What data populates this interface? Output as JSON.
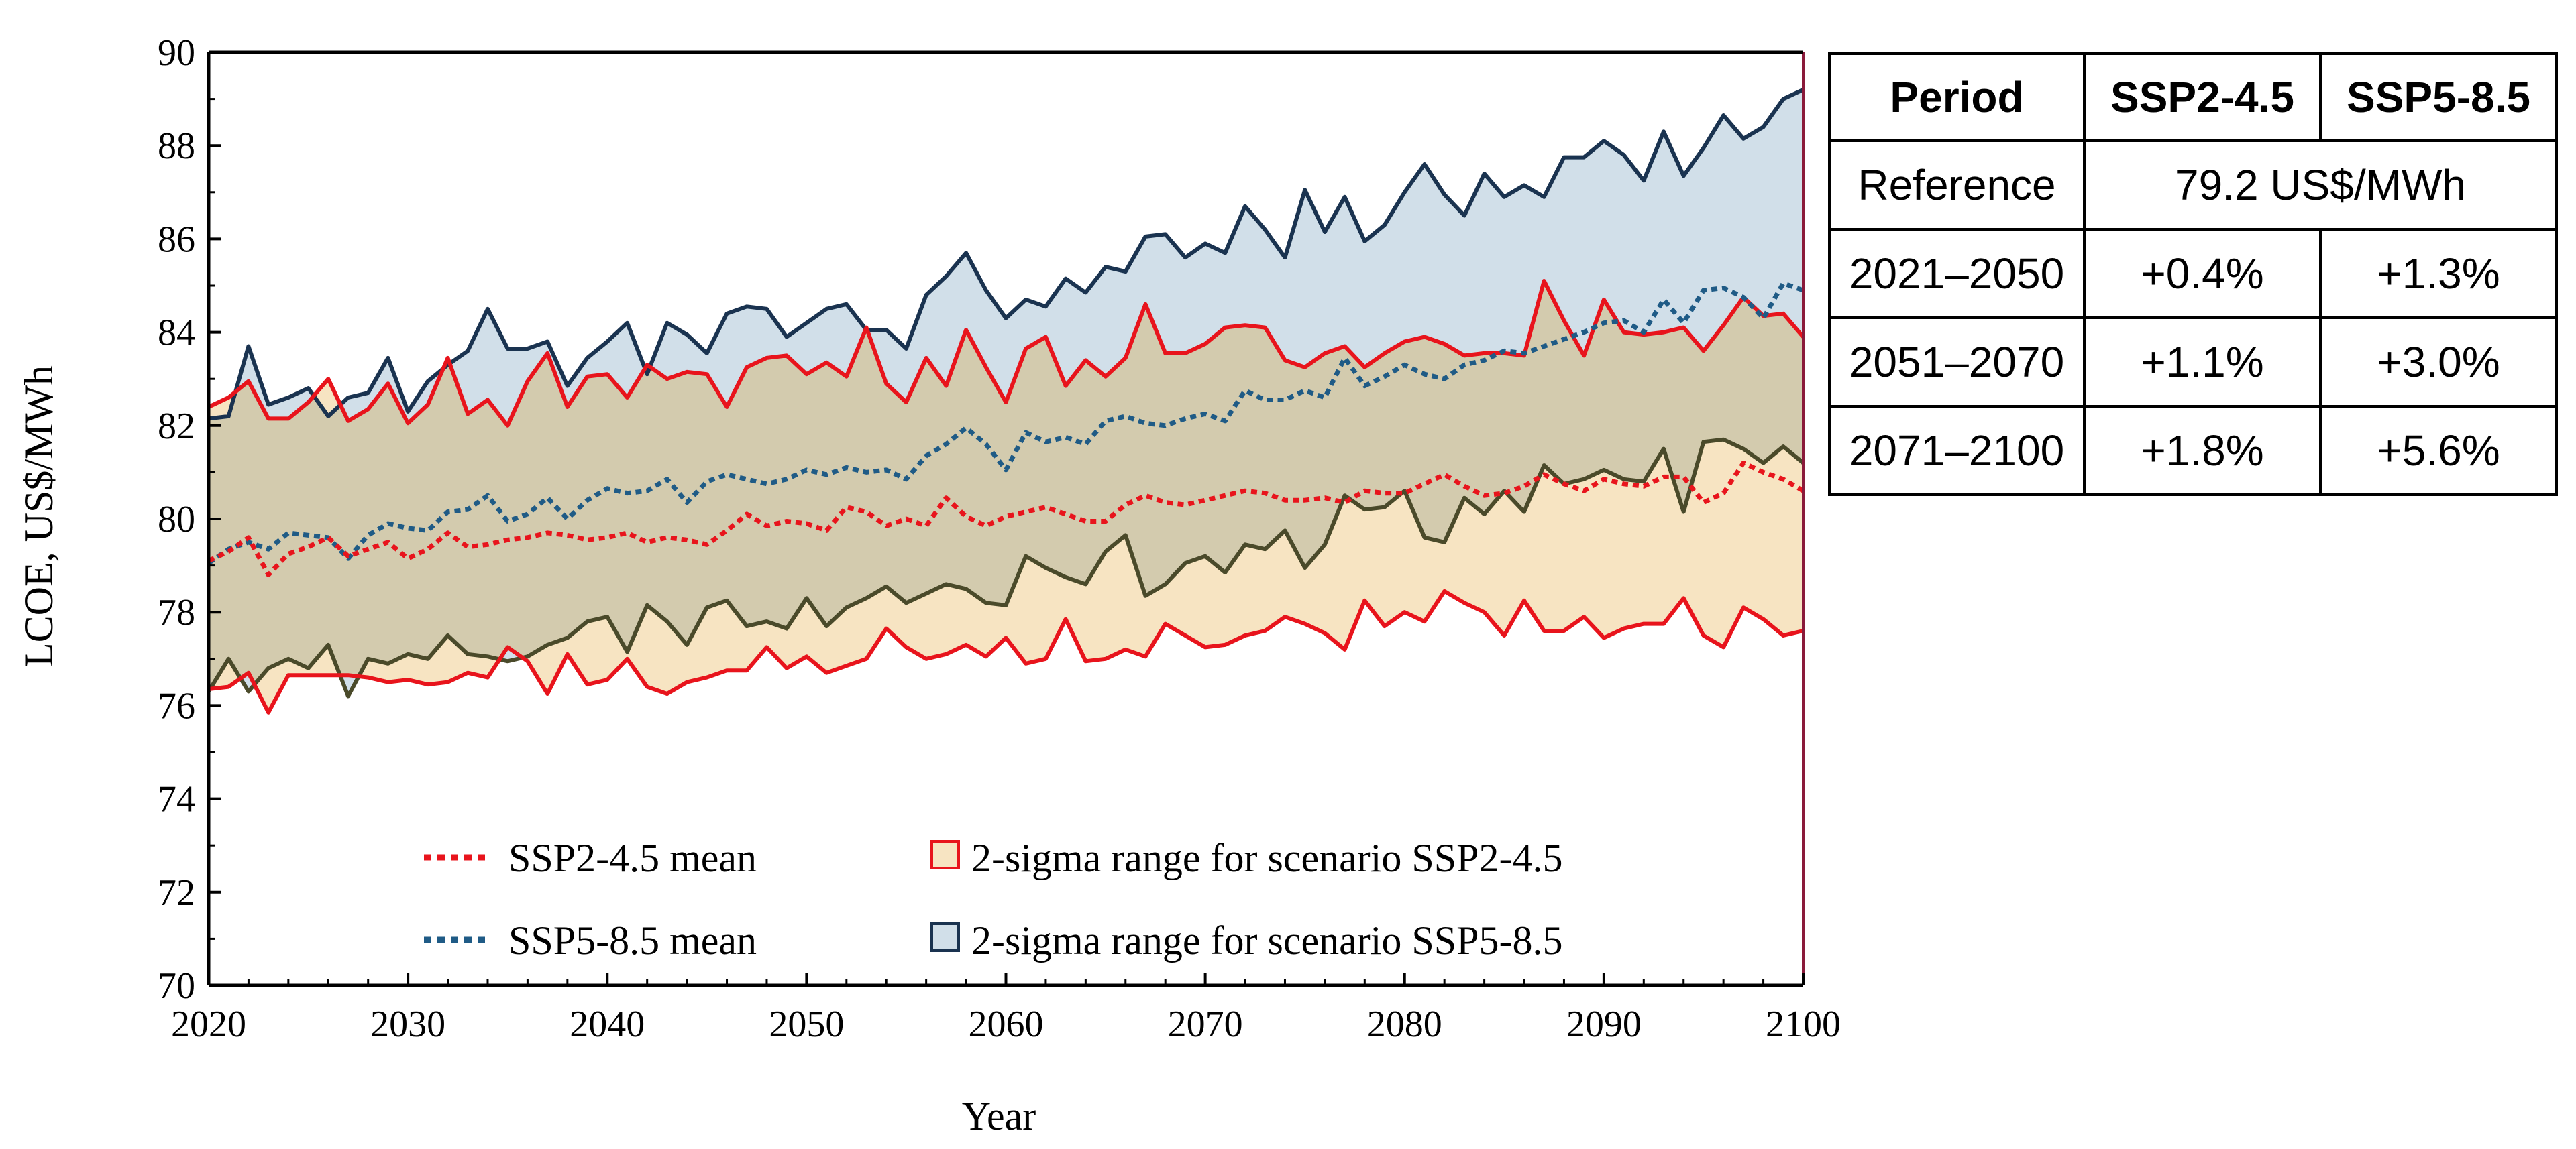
{
  "chart_data": {
    "type": "line",
    "title": "",
    "xlabel": "Year",
    "ylabel": "LCOE, US$/MWh",
    "xlim": [
      2020,
      2100
    ],
    "ylim": [
      70,
      90
    ],
    "xticks": [
      2020,
      2030,
      2040,
      2050,
      2060,
      2070,
      2080,
      2090,
      2100
    ],
    "yticks": [
      70,
      72,
      74,
      76,
      78,
      80,
      82,
      84,
      86,
      88,
      90
    ],
    "legend_position": "bottom-center",
    "legend": {
      "ssp245_mean": "SSP2-4.5 mean",
      "ssp585_mean": "SSP5-8.5 mean",
      "ssp245_band": "2-sigma range for scenario SSP2-4.5",
      "ssp585_band": "2-sigma range for scenario SSP5-8.5"
    },
    "colors": {
      "ssp245_line": "#e8141c",
      "ssp585_line": "#1a3350",
      "ssp245_fill": "#f7e4c2",
      "ssp585_fill": "#d1dfe9",
      "overlap_fill": "#d3cbae",
      "ssp245_mean": "#e8141c",
      "ssp585_mean": "#1f5b86"
    },
    "series": [
      {
        "name": "SSP2-4.5 lower",
        "start_year": 2020,
        "values": [
          76.35,
          76.4,
          76.7,
          75.85,
          76.65,
          76.65,
          76.65,
          76.65,
          76.6,
          76.5,
          76.55,
          76.45,
          76.5,
          76.7,
          76.6,
          77.25,
          76.95,
          76.25,
          77.1,
          76.45,
          76.55,
          77.0,
          76.4,
          76.25,
          76.5,
          76.6,
          76.75,
          76.75,
          77.25,
          76.8,
          77.05,
          76.7,
          76.85,
          77.0,
          77.65,
          77.25,
          77.0,
          77.1,
          77.3,
          77.05,
          77.45,
          76.9,
          77.0,
          77.85,
          76.95,
          77.0,
          77.2,
          77.05,
          77.75,
          77.5,
          77.25,
          77.3,
          77.5,
          77.6,
          77.9,
          77.75,
          77.55,
          77.2,
          78.25,
          77.7,
          78.0,
          77.8,
          78.45,
          78.2,
          78.0,
          77.5,
          78.25,
          77.6,
          77.6,
          77.9,
          77.45,
          77.65,
          77.75,
          77.75,
          78.3,
          77.5,
          77.25,
          78.1,
          77.85,
          77.5,
          77.6
        ]
      },
      {
        "name": "SSP2-4.5 upper",
        "start_year": 2020,
        "values": [
          82.4,
          82.6,
          82.95,
          82.15,
          82.15,
          82.5,
          83.0,
          82.1,
          82.35,
          82.9,
          82.05,
          82.45,
          83.45,
          82.25,
          82.55,
          82.0,
          82.95,
          83.55,
          82.4,
          83.05,
          83.1,
          82.6,
          83.3,
          83.0,
          83.15,
          83.1,
          82.4,
          83.25,
          83.45,
          83.5,
          83.1,
          83.35,
          83.05,
          84.1,
          82.9,
          82.5,
          83.45,
          82.85,
          84.05,
          83.25,
          82.5,
          83.65,
          83.9,
          82.85,
          83.4,
          83.05,
          83.45,
          84.6,
          83.55,
          83.55,
          83.75,
          84.1,
          84.15,
          84.1,
          83.4,
          83.25,
          83.55,
          83.7,
          83.25,
          83.55,
          83.8,
          83.9,
          83.75,
          83.5,
          83.55,
          83.55,
          83.5,
          85.1,
          84.25,
          83.5,
          84.7,
          84.0,
          83.95,
          84.0,
          84.1,
          83.6,
          84.15,
          84.75,
          84.35,
          84.4,
          83.9
        ]
      },
      {
        "name": "SSP5-8.5 lower",
        "start_year": 2020,
        "values": [
          76.3,
          77.0,
          76.3,
          76.8,
          77.0,
          76.8,
          77.3,
          76.2,
          77.0,
          76.9,
          77.1,
          77.0,
          77.5,
          77.1,
          77.05,
          76.95,
          77.05,
          77.3,
          77.45,
          77.8,
          77.9,
          77.15,
          78.15,
          77.8,
          77.3,
          78.1,
          78.25,
          77.7,
          77.8,
          77.65,
          78.3,
          77.7,
          78.1,
          78.3,
          78.55,
          78.2,
          78.4,
          78.6,
          78.5,
          78.2,
          78.15,
          79.2,
          78.95,
          78.75,
          78.6,
          79.3,
          79.65,
          78.35,
          78.6,
          79.05,
          79.2,
          78.85,
          79.45,
          79.35,
          79.75,
          78.95,
          79.45,
          80.5,
          80.2,
          80.25,
          80.6,
          79.6,
          79.5,
          80.45,
          80.1,
          80.6,
          80.15,
          81.15,
          80.75,
          80.85,
          81.05,
          80.85,
          80.8,
          81.5,
          80.15,
          81.65,
          81.7,
          81.5,
          81.2,
          81.55,
          81.2
        ]
      },
      {
        "name": "SSP5-8.5 upper",
        "start_year": 2020,
        "values": [
          82.15,
          82.2,
          83.7,
          82.45,
          82.6,
          82.8,
          82.2,
          82.6,
          82.7,
          83.45,
          82.3,
          82.95,
          83.3,
          83.6,
          84.5,
          83.65,
          83.65,
          83.8,
          82.85,
          83.45,
          83.8,
          84.2,
          83.1,
          84.2,
          83.95,
          83.55,
          84.4,
          84.55,
          84.5,
          83.9,
          84.2,
          84.5,
          84.6,
          84.05,
          84.05,
          83.65,
          84.8,
          85.2,
          85.7,
          84.9,
          84.3,
          84.7,
          84.55,
          85.15,
          84.85,
          85.4,
          85.3,
          86.05,
          86.1,
          85.6,
          85.9,
          85.7,
          86.7,
          86.2,
          85.6,
          87.05,
          86.15,
          86.9,
          85.95,
          86.3,
          87.0,
          87.6,
          86.95,
          86.5,
          87.4,
          86.9,
          87.15,
          86.9,
          87.75,
          87.75,
          88.1,
          87.8,
          87.25,
          88.3,
          87.35,
          87.95,
          88.65,
          88.15,
          88.4,
          89.0,
          89.2
        ]
      },
      {
        "name": "SSP2-4.5 mean",
        "start_year": 2020,
        "values": [
          79.1,
          79.3,
          79.6,
          78.8,
          79.25,
          79.4,
          79.6,
          79.2,
          79.35,
          79.5,
          79.15,
          79.35,
          79.7,
          79.4,
          79.45,
          79.55,
          79.6,
          79.7,
          79.65,
          79.55,
          79.6,
          79.7,
          79.5,
          79.6,
          79.55,
          79.45,
          79.75,
          80.1,
          79.85,
          79.95,
          79.9,
          79.75,
          80.25,
          80.15,
          79.85,
          80.0,
          79.85,
          80.45,
          80.05,
          79.85,
          80.05,
          80.15,
          80.25,
          80.1,
          79.95,
          79.95,
          80.3,
          80.5,
          80.35,
          80.3,
          80.4,
          80.5,
          80.6,
          80.55,
          80.4,
          80.4,
          80.45,
          80.35,
          80.6,
          80.55,
          80.55,
          80.75,
          80.95,
          80.7,
          80.5,
          80.55,
          80.7,
          80.95,
          80.75,
          80.6,
          80.85,
          80.75,
          80.7,
          80.9,
          80.9,
          80.35,
          80.55,
          81.2,
          81.0,
          80.85,
          80.6
        ]
      },
      {
        "name": "SSP5-8.5 mean",
        "start_year": 2020,
        "values": [
          79.05,
          79.35,
          79.5,
          79.35,
          79.7,
          79.65,
          79.6,
          79.15,
          79.65,
          79.9,
          79.8,
          79.75,
          80.15,
          80.2,
          80.5,
          79.95,
          80.1,
          80.45,
          80.0,
          80.4,
          80.65,
          80.55,
          80.6,
          80.85,
          80.35,
          80.8,
          80.95,
          80.85,
          80.75,
          80.85,
          81.05,
          80.95,
          81.1,
          81.0,
          81.05,
          80.85,
          81.35,
          81.6,
          81.95,
          81.6,
          81.05,
          81.85,
          81.65,
          81.75,
          81.6,
          82.1,
          82.2,
          82.05,
          82.0,
          82.15,
          82.25,
          82.1,
          82.75,
          82.55,
          82.55,
          82.75,
          82.6,
          83.45,
          82.85,
          83.05,
          83.3,
          83.1,
          83.0,
          83.3,
          83.4,
          83.6,
          83.55,
          83.7,
          83.85,
          84.0,
          84.2,
          84.25,
          84.0,
          84.7,
          84.2,
          84.9,
          84.95,
          84.75,
          84.3,
          85.05,
          84.9
        ]
      }
    ]
  },
  "table": {
    "headers": [
      "Period",
      "SSP2-4.5",
      "SSP5-8.5"
    ],
    "reference_label": "Reference",
    "reference_value": "79.2 US$/MWh",
    "rows": [
      {
        "period": "2021–2050",
        "ssp245": "+0.4%",
        "ssp585": "+1.3%"
      },
      {
        "period": "2051–2070",
        "ssp245": "+1.1%",
        "ssp585": "+3.0%"
      },
      {
        "period": "2071–2100",
        "ssp245": "+1.8%",
        "ssp585": "+5.6%"
      }
    ]
  }
}
